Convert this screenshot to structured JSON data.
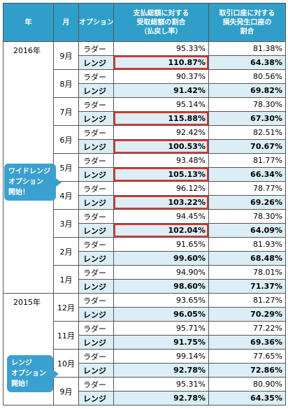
{
  "header": {
    "year": "年",
    "month": "月",
    "option": "オプション",
    "payout": "支払総額に対する\n受取総額の割合\n（払戻し率）",
    "loss": "取引口座に対する\n損失発生口座の\n割合"
  },
  "groups": [
    {
      "year": "2016年",
      "months": [
        {
          "month": "9月",
          "ladder": {
            "label": "ラダー",
            "payout": "95.33%",
            "loss": "81.38%"
          },
          "range": {
            "label": "レンジ",
            "payout": "110.87%",
            "loss": "64.38%"
          },
          "highlight": true
        },
        {
          "month": "8月",
          "ladder": {
            "label": "ラダー",
            "payout": "90.37%",
            "loss": "80.56%"
          },
          "range": {
            "label": "レンジ",
            "payout": "91.42%",
            "loss": "69.82%"
          },
          "highlight": false
        },
        {
          "month": "7月",
          "ladder": {
            "label": "ラダー",
            "payout": "95.14%",
            "loss": "78.30%"
          },
          "range": {
            "label": "レンジ",
            "payout": "115.88%",
            "loss": "67.30%"
          },
          "highlight": true
        },
        {
          "month": "6月",
          "ladder": {
            "label": "ラダー",
            "payout": "92.42%",
            "loss": "82.51%"
          },
          "range": {
            "label": "レンジ",
            "payout": "100.53%",
            "loss": "70.67%"
          },
          "highlight": true
        },
        {
          "month": "5月",
          "ladder": {
            "label": "ラダー",
            "payout": "93.48%",
            "loss": "81.77%"
          },
          "range": {
            "label": "レンジ",
            "payout": "105.13%",
            "loss": "66.34%"
          },
          "highlight": true
        },
        {
          "month": "4月",
          "ladder": {
            "label": "ラダー",
            "payout": "96.12%",
            "loss": "78.77%"
          },
          "range": {
            "label": "レンジ",
            "payout": "103.22%",
            "loss": "69.26%"
          },
          "highlight": true
        },
        {
          "month": "3月",
          "ladder": {
            "label": "ラダー",
            "payout": "94.45%",
            "loss": "78.30%"
          },
          "range": {
            "label": "レンジ",
            "payout": "102.04%",
            "loss": "64.09%"
          },
          "highlight": true
        },
        {
          "month": "2月",
          "ladder": {
            "label": "ラダー",
            "payout": "91.65%",
            "loss": "81.93%"
          },
          "range": {
            "label": "レンジ",
            "payout": "99.60%",
            "loss": "68.48%"
          },
          "highlight": false
        },
        {
          "month": "1月",
          "ladder": {
            "label": "ラダー",
            "payout": "94.90%",
            "loss": "78.01%"
          },
          "range": {
            "label": "レンジ",
            "payout": "98.60%",
            "loss": "71.37%"
          },
          "highlight": false
        }
      ]
    },
    {
      "year": "2015年",
      "months": [
        {
          "month": "12月",
          "ladder": {
            "label": "ラダー",
            "payout": "93.65%",
            "loss": "81.27%"
          },
          "range": {
            "label": "レンジ",
            "payout": "96.05%",
            "loss": "70.29%"
          },
          "highlight": false
        },
        {
          "month": "11月",
          "ladder": {
            "label": "ラダー",
            "payout": "95.71%",
            "loss": "77.22%"
          },
          "range": {
            "label": "レンジ",
            "payout": "91.75%",
            "loss": "69.36%"
          },
          "highlight": false
        },
        {
          "month": "10月",
          "ladder": {
            "label": "ラダー",
            "payout": "99.14%",
            "loss": "77.65%"
          },
          "range": {
            "label": "レンジ",
            "payout": "92.78%",
            "loss": "72.86%"
          },
          "highlight": false
        },
        {
          "month": "9月",
          "ladder": {
            "label": "ラダー",
            "payout": "95.31%",
            "loss": "80.90%"
          },
          "range": {
            "label": "レンジ",
            "payout": "92.78%",
            "loss": "64.35%"
          },
          "highlight": false
        }
      ]
    }
  ],
  "callouts": {
    "wide_range": "ワイドレンジ\nオプション\n開始！",
    "range": "レンジ\nオプション\n開始！"
  }
}
